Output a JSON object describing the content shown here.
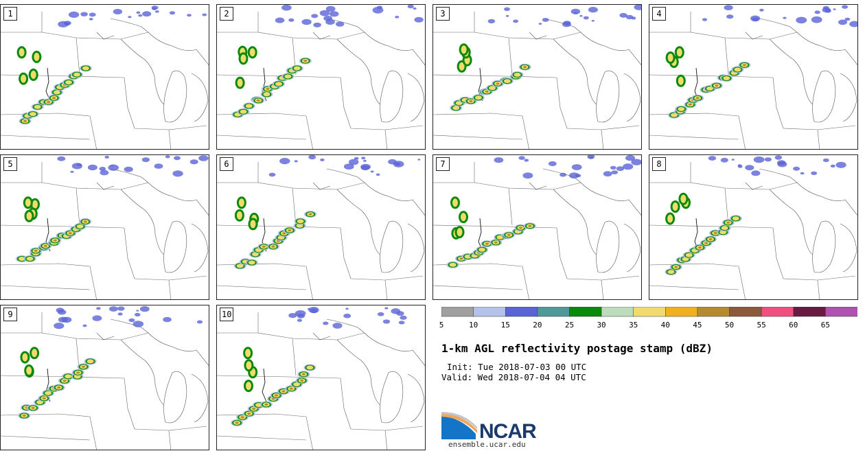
{
  "panels": [
    {
      "label": "1"
    },
    {
      "label": "2"
    },
    {
      "label": "3"
    },
    {
      "label": "4"
    },
    {
      "label": "5"
    },
    {
      "label": "6"
    },
    {
      "label": "7"
    },
    {
      "label": "8"
    },
    {
      "label": "9"
    },
    {
      "label": "10"
    }
  ],
  "colorbar": {
    "colors": [
      "#a0a0a0",
      "#b4c2ea",
      "#5a64d6",
      "#4f9999",
      "#0a8a0a",
      "#bcdcbc",
      "#f0dc6e",
      "#f0b020",
      "#b88a30",
      "#8b5a3c",
      "#f05080",
      "#6a1a40",
      "#b050b0"
    ],
    "labels": [
      "5",
      "10",
      "15",
      "20",
      "25",
      "30",
      "35",
      "40",
      "45",
      "50",
      "55",
      "60",
      "65"
    ]
  },
  "title": "1-km AGL reflectivity postage stamp (dBZ)",
  "init": "Init: Tue 2018-07-03 00 UTC",
  "valid": "Valid: Wed 2018-07-04 04 UTC",
  "logo": {
    "text": "NCAR",
    "url": "ensemble.ucar.edu"
  }
}
